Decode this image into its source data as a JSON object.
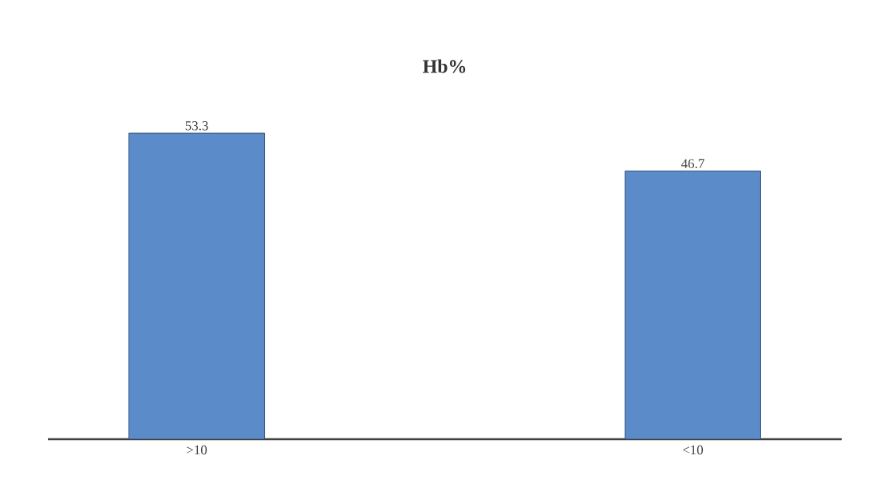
{
  "chart_data": {
    "type": "bar",
    "title": "Hb%",
    "categories": [
      ">10",
      "<10"
    ],
    "values": [
      53.3,
      46.7
    ],
    "color": "#5b8bc9",
    "data_labels": true
  }
}
